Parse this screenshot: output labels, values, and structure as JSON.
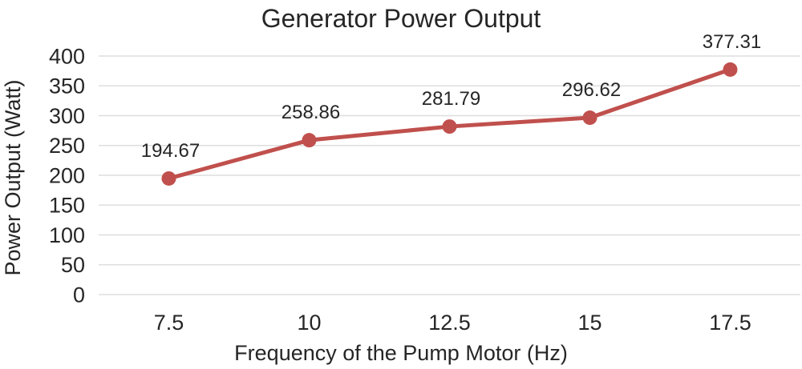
{
  "figure": {
    "background": "#FFFFFF"
  },
  "chart_data": {
    "type": "line",
    "title": "Generator Power Output",
    "xlabel": "Frequency of the Pump Motor (Hz)",
    "ylabel": "Power Output (Watt)",
    "categories": [
      "7.5",
      "10",
      "12.5",
      "15",
      "17.5"
    ],
    "series": [
      {
        "name": "Power Output",
        "values": [
          194.67,
          258.86,
          281.79,
          296.62,
          377.31
        ],
        "data_labels": [
          "194.67",
          "258.86",
          "281.79",
          "296.62",
          "377.31"
        ],
        "color": "#C0504D",
        "marker": "circle"
      }
    ],
    "y_ticks": [
      "0",
      "50",
      "100",
      "150",
      "200",
      "250",
      "300",
      "350",
      "400"
    ],
    "ylim": [
      0,
      400
    ],
    "grid": "horizontal-only",
    "gridline_color": "#DEDEDE",
    "text_color": "#262626",
    "legend": "none"
  }
}
